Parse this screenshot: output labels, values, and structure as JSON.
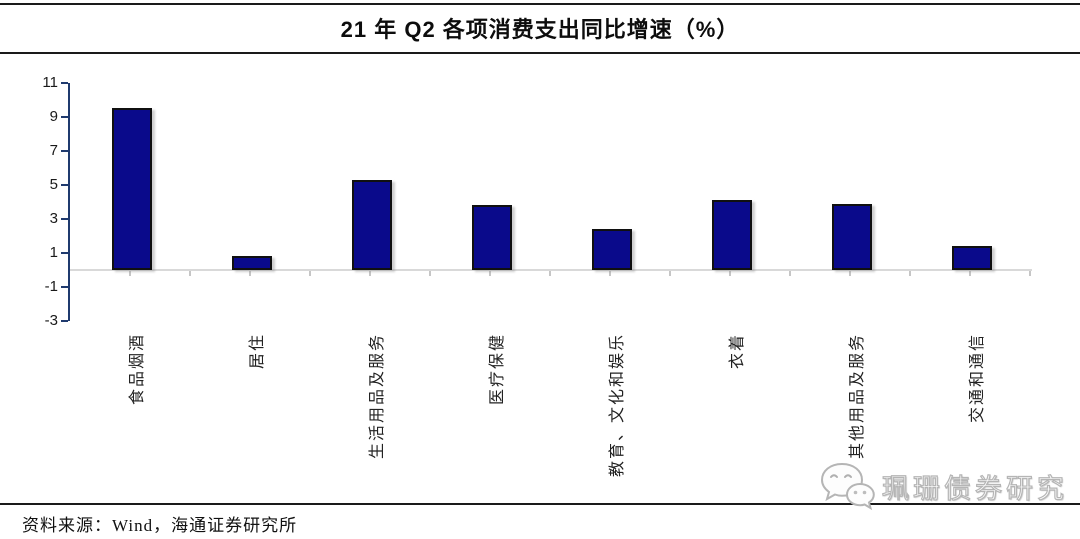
{
  "title": "21 年 Q2 各项消费支出同比增速（%）",
  "source_note": "资料来源：Wind，海通证券研究所",
  "watermark": {
    "icon": "wechat-icon",
    "text": "珮珊债券研究"
  },
  "chart_data": {
    "type": "bar",
    "title": "21 年 Q2 各项消费支出同比增速（%）",
    "categories": [
      "食品烟酒",
      "居住",
      "生活用品及服务",
      "医疗保健",
      "教育、文化和娱乐",
      "衣着",
      "其他用品及服务",
      "交通和通信"
    ],
    "values": [
      9.5,
      0.8,
      5.3,
      3.8,
      2.4,
      4.1,
      3.9,
      1.4
    ],
    "xlabel": "",
    "ylabel": "",
    "ylim": [
      -3,
      11
    ],
    "yticks": [
      11,
      9,
      7,
      5,
      3,
      1,
      -1,
      -3
    ],
    "grid": false,
    "legend": "none",
    "bar_color": "#0a0a8b",
    "axis_color": "#1f3a6e",
    "baseline_color": "#d9d9d9",
    "category_label_rotation": -90
  }
}
